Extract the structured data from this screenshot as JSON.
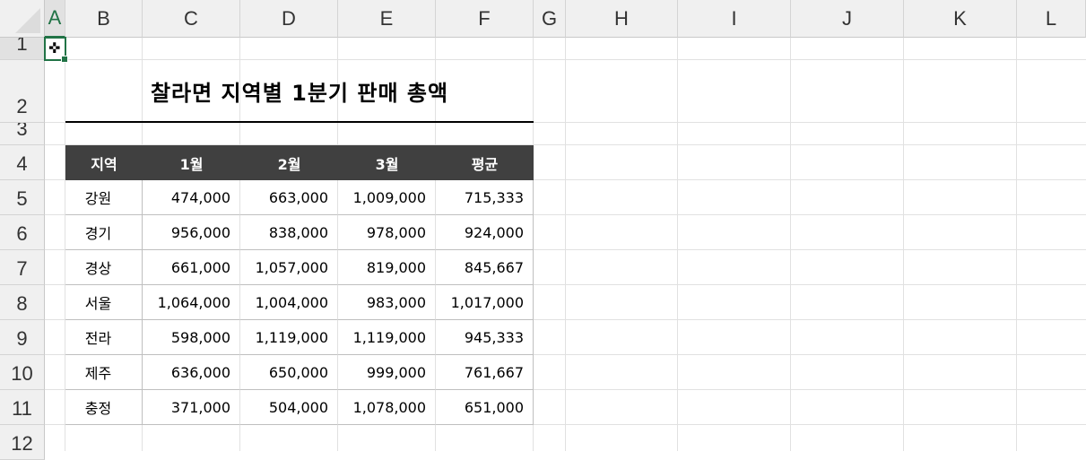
{
  "sheet": {
    "columns": [
      "A",
      "B",
      "C",
      "D",
      "E",
      "F",
      "G",
      "H",
      "I",
      "J",
      "K",
      "L"
    ],
    "rows": [
      "1",
      "2",
      "3",
      "4",
      "5",
      "6",
      "7",
      "8",
      "9",
      "10",
      "11",
      "12"
    ],
    "selected_cell": "A1",
    "accent_color": "#217346",
    "header_fill": "#404040"
  },
  "report": {
    "title": "찰라면 지역별 1분기 판매 총액",
    "headers": [
      "지역",
      "1월",
      "2월",
      "3월",
      "평균"
    ],
    "rows": [
      [
        "강원",
        "474,000",
        "663,000",
        "1,009,000",
        "715,333"
      ],
      [
        "경기",
        "956,000",
        "838,000",
        "978,000",
        "924,000"
      ],
      [
        "경상",
        "661,000",
        "1,057,000",
        "819,000",
        "845,667"
      ],
      [
        "서울",
        "1,064,000",
        "1,004,000",
        "983,000",
        "1,017,000"
      ],
      [
        "전라",
        "598,000",
        "1,119,000",
        "1,119,000",
        "945,333"
      ],
      [
        "제주",
        "636,000",
        "650,000",
        "999,000",
        "761,667"
      ],
      [
        "충정",
        "371,000",
        "504,000",
        "1,078,000",
        "651,000"
      ]
    ]
  }
}
